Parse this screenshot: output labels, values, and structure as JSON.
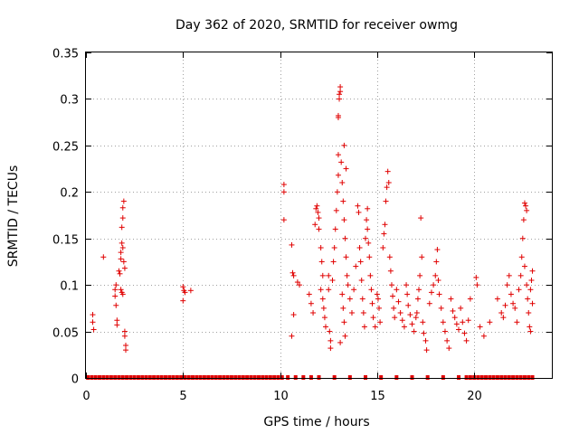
{
  "chart_data": {
    "type": "scatter",
    "title": "Day 362 of 2020, SRMTID for receiver owmg",
    "xlabel": "GPS time / hours",
    "ylabel": "SRMTID / TECUs",
    "xlim": [
      0,
      24
    ],
    "ylim": [
      0,
      0.35
    ],
    "xticks": [
      0,
      5,
      10,
      15,
      20
    ],
    "yticks": [
      0,
      0.05,
      0.1,
      0.15,
      0.2,
      0.25,
      0.3,
      0.35
    ],
    "xtick_labels": [
      "0",
      "5",
      "10",
      "15",
      "20"
    ],
    "ytick_labels": [
      "0",
      "0.05",
      "0.1",
      "0.15",
      "0.2",
      "0.25",
      "0.3",
      "0.35"
    ],
    "grid": true,
    "marker": "plus",
    "color": "#e00000",
    "series": [
      {
        "name": "SRMTID",
        "points": [
          [
            0.35,
            0.068
          ],
          [
            0.35,
            0.06
          ],
          [
            0.4,
            0.052
          ],
          [
            0.9,
            0.13
          ],
          [
            1.5,
            0.095
          ],
          [
            1.5,
            0.088
          ],
          [
            1.55,
            0.1
          ],
          [
            1.55,
            0.078
          ],
          [
            1.6,
            0.062
          ],
          [
            1.6,
            0.057
          ],
          [
            1.7,
            0.115
          ],
          [
            1.75,
            0.112
          ],
          [
            1.8,
            0.128
          ],
          [
            1.8,
            0.135
          ],
          [
            1.85,
            0.145
          ],
          [
            1.85,
            0.162
          ],
          [
            1.9,
            0.172
          ],
          [
            1.9,
            0.183
          ],
          [
            1.95,
            0.19
          ],
          [
            1.9,
            0.14
          ],
          [
            1.95,
            0.125
          ],
          [
            2.0,
            0.118
          ],
          [
            1.8,
            0.095
          ],
          [
            1.85,
            0.092
          ],
          [
            1.9,
            0.09
          ],
          [
            2.0,
            0.05
          ],
          [
            2.0,
            0.045
          ],
          [
            2.05,
            0.035
          ],
          [
            2.05,
            0.03
          ],
          [
            5.0,
            0.098
          ],
          [
            5.05,
            0.094
          ],
          [
            5.1,
            0.092
          ],
          [
            5.0,
            0.083
          ],
          [
            5.4,
            0.094
          ],
          [
            10.2,
            0.208
          ],
          [
            10.2,
            0.2
          ],
          [
            10.2,
            0.17
          ],
          [
            10.6,
            0.143
          ],
          [
            10.65,
            0.113
          ],
          [
            10.7,
            0.11
          ],
          [
            10.6,
            0.045
          ],
          [
            10.7,
            0.068
          ],
          [
            10.9,
            0.103
          ],
          [
            11.0,
            0.1
          ],
          [
            11.5,
            0.09
          ],
          [
            11.6,
            0.08
          ],
          [
            11.7,
            0.07
          ],
          [
            11.8,
            0.165
          ],
          [
            11.85,
            0.182
          ],
          [
            11.9,
            0.185
          ],
          [
            11.95,
            0.178
          ],
          [
            12.0,
            0.172
          ],
          [
            12.0,
            0.16
          ],
          [
            12.1,
            0.14
          ],
          [
            12.15,
            0.125
          ],
          [
            12.2,
            0.11
          ],
          [
            12.1,
            0.095
          ],
          [
            12.2,
            0.085
          ],
          [
            12.25,
            0.075
          ],
          [
            12.3,
            0.065
          ],
          [
            12.35,
            0.055
          ],
          [
            12.5,
            0.11
          ],
          [
            12.5,
            0.095
          ],
          [
            12.55,
            0.05
          ],
          [
            12.6,
            0.04
          ],
          [
            12.6,
            0.032
          ],
          [
            12.7,
            0.105
          ],
          [
            12.75,
            0.125
          ],
          [
            12.8,
            0.14
          ],
          [
            12.85,
            0.16
          ],
          [
            12.9,
            0.18
          ],
          [
            12.95,
            0.2
          ],
          [
            13.0,
            0.218
          ],
          [
            13.0,
            0.24
          ],
          [
            13.0,
            0.282
          ],
          [
            13.0,
            0.28
          ],
          [
            13.05,
            0.3
          ],
          [
            13.05,
            0.305
          ],
          [
            13.1,
            0.308
          ],
          [
            13.1,
            0.313
          ],
          [
            13.15,
            0.232
          ],
          [
            13.2,
            0.21
          ],
          [
            13.25,
            0.19
          ],
          [
            13.3,
            0.17
          ],
          [
            13.35,
            0.15
          ],
          [
            13.4,
            0.13
          ],
          [
            13.45,
            0.11
          ],
          [
            13.3,
            0.25
          ],
          [
            13.4,
            0.225
          ],
          [
            13.2,
            0.09
          ],
          [
            13.25,
            0.075
          ],
          [
            13.3,
            0.06
          ],
          [
            13.35,
            0.045
          ],
          [
            13.1,
            0.038
          ],
          [
            13.5,
            0.1
          ],
          [
            13.6,
            0.085
          ],
          [
            13.7,
            0.07
          ],
          [
            13.8,
            0.095
          ],
          [
            13.9,
            0.12
          ],
          [
            14.0,
            0.185
          ],
          [
            14.05,
            0.178
          ],
          [
            14.1,
            0.14
          ],
          [
            14.15,
            0.125
          ],
          [
            14.2,
            0.105
          ],
          [
            14.25,
            0.085
          ],
          [
            14.3,
            0.07
          ],
          [
            14.35,
            0.055
          ],
          [
            14.4,
            0.15
          ],
          [
            14.45,
            0.17
          ],
          [
            14.5,
            0.182
          ],
          [
            14.5,
            0.16
          ],
          [
            14.55,
            0.145
          ],
          [
            14.6,
            0.13
          ],
          [
            14.65,
            0.11
          ],
          [
            14.7,
            0.095
          ],
          [
            14.75,
            0.08
          ],
          [
            14.8,
            0.065
          ],
          [
            14.9,
            0.055
          ],
          [
            15.0,
            0.09
          ],
          [
            15.05,
            0.085
          ],
          [
            15.1,
            0.075
          ],
          [
            15.15,
            0.06
          ],
          [
            15.3,
            0.14
          ],
          [
            15.35,
            0.155
          ],
          [
            15.4,
            0.165
          ],
          [
            15.45,
            0.19
          ],
          [
            15.5,
            0.205
          ],
          [
            15.55,
            0.222
          ],
          [
            15.6,
            0.21
          ],
          [
            15.65,
            0.13
          ],
          [
            15.7,
            0.115
          ],
          [
            15.75,
            0.1
          ],
          [
            15.8,
            0.088
          ],
          [
            15.85,
            0.075
          ],
          [
            15.9,
            0.065
          ],
          [
            16.0,
            0.095
          ],
          [
            16.1,
            0.082
          ],
          [
            16.2,
            0.07
          ],
          [
            16.3,
            0.062
          ],
          [
            16.4,
            0.055
          ],
          [
            16.5,
            0.1
          ],
          [
            16.55,
            0.09
          ],
          [
            16.6,
            0.078
          ],
          [
            16.7,
            0.068
          ],
          [
            16.8,
            0.058
          ],
          [
            16.9,
            0.05
          ],
          [
            17.0,
            0.065
          ],
          [
            17.05,
            0.07
          ],
          [
            17.1,
            0.085
          ],
          [
            17.15,
            0.095
          ],
          [
            17.2,
            0.11
          ],
          [
            17.25,
            0.172
          ],
          [
            17.3,
            0.13
          ],
          [
            17.35,
            0.06
          ],
          [
            17.4,
            0.048
          ],
          [
            17.5,
            0.04
          ],
          [
            17.55,
            0.03
          ],
          [
            17.7,
            0.08
          ],
          [
            17.8,
            0.092
          ],
          [
            17.9,
            0.1
          ],
          [
            18.0,
            0.11
          ],
          [
            18.05,
            0.125
          ],
          [
            18.1,
            0.138
          ],
          [
            18.15,
            0.105
          ],
          [
            18.2,
            0.09
          ],
          [
            18.3,
            0.075
          ],
          [
            18.4,
            0.06
          ],
          [
            18.5,
            0.05
          ],
          [
            18.6,
            0.04
          ],
          [
            18.7,
            0.032
          ],
          [
            18.8,
            0.085
          ],
          [
            18.9,
            0.072
          ],
          [
            19.0,
            0.065
          ],
          [
            19.1,
            0.058
          ],
          [
            19.2,
            0.052
          ],
          [
            19.3,
            0.075
          ],
          [
            19.4,
            0.06
          ],
          [
            19.5,
            0.048
          ],
          [
            19.6,
            0.04
          ],
          [
            19.7,
            0.062
          ],
          [
            19.8,
            0.085
          ],
          [
            20.1,
            0.108
          ],
          [
            20.15,
            0.1
          ],
          [
            20.3,
            0.055
          ],
          [
            20.5,
            0.045
          ],
          [
            20.8,
            0.06
          ],
          [
            21.2,
            0.085
          ],
          [
            21.4,
            0.07
          ],
          [
            21.5,
            0.065
          ],
          [
            21.6,
            0.078
          ],
          [
            21.7,
            0.1
          ],
          [
            21.8,
            0.11
          ],
          [
            21.9,
            0.09
          ],
          [
            22.0,
            0.08
          ],
          [
            22.1,
            0.075
          ],
          [
            22.2,
            0.06
          ],
          [
            22.3,
            0.095
          ],
          [
            22.4,
            0.11
          ],
          [
            22.45,
            0.13
          ],
          [
            22.5,
            0.15
          ],
          [
            22.55,
            0.17
          ],
          [
            22.6,
            0.188
          ],
          [
            22.65,
            0.185
          ],
          [
            22.7,
            0.18
          ],
          [
            22.6,
            0.12
          ],
          [
            22.7,
            0.1
          ],
          [
            22.75,
            0.085
          ],
          [
            22.8,
            0.07
          ],
          [
            22.85,
            0.055
          ],
          [
            22.9,
            0.095
          ],
          [
            22.95,
            0.105
          ],
          [
            23.0,
            0.08
          ],
          [
            23.0,
            0.115
          ],
          [
            22.9,
            0.05
          ]
        ],
        "zero_x": [
          0.1,
          0.3,
          0.5,
          0.7,
          0.9,
          1.1,
          1.3,
          1.5,
          1.7,
          1.9,
          2.1,
          2.3,
          2.5,
          2.7,
          2.9,
          3.1,
          3.3,
          3.5,
          3.7,
          3.9,
          4.1,
          4.3,
          4.5,
          4.7,
          4.9,
          5.1,
          5.3,
          5.5,
          5.7,
          5.9,
          6.1,
          6.3,
          6.5,
          6.7,
          6.9,
          7.1,
          7.3,
          7.5,
          7.7,
          7.9,
          8.1,
          8.3,
          8.5,
          8.7,
          8.9,
          9.1,
          9.3,
          9.5,
          9.7,
          9.9,
          10.1,
          10.4,
          10.8,
          11.2,
          11.6,
          12.0,
          12.8,
          13.6,
          14.4,
          15.2,
          16.0,
          16.8,
          17.6,
          18.4,
          19.2,
          19.6,
          19.8,
          20.0,
          20.2,
          20.4,
          20.6,
          20.8,
          21.0,
          21.2,
          21.4,
          21.6,
          21.8,
          22.0,
          22.2,
          22.4,
          22.6,
          22.8,
          23.0
        ]
      }
    ]
  }
}
